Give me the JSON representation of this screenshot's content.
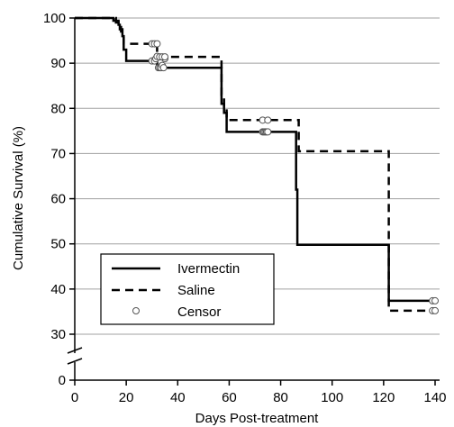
{
  "chart_data": {
    "type": "line",
    "title": "",
    "xlabel": "Days Post-treatment",
    "ylabel": "Cumulative Survival (%)",
    "xlim": [
      0,
      140
    ],
    "ylim": [
      30,
      100
    ],
    "y_axis_break": true,
    "x_ticks": [
      0,
      20,
      40,
      60,
      80,
      100,
      120,
      140
    ],
    "y_ticks": [
      0,
      30,
      40,
      50,
      60,
      70,
      80,
      90,
      100
    ],
    "grid": "horizontal",
    "legend_position": "bottom-left",
    "series": [
      {
        "name": "Ivermectin",
        "style": "solid",
        "steps": [
          [
            0,
            100
          ],
          [
            15,
            100
          ],
          [
            15,
            99.4
          ],
          [
            17,
            99.4
          ],
          [
            17,
            98.5
          ],
          [
            17.5,
            98.5
          ],
          [
            17.5,
            97.5
          ],
          [
            18.5,
            97.5
          ],
          [
            18.5,
            96
          ],
          [
            19,
            96
          ],
          [
            19,
            93
          ],
          [
            20,
            93
          ],
          [
            20,
            90.5
          ],
          [
            32,
            90.5
          ],
          [
            32,
            89
          ],
          [
            57,
            89
          ],
          [
            57,
            81
          ],
          [
            58,
            81
          ],
          [
            58,
            79
          ],
          [
            59,
            79
          ],
          [
            59,
            74.8
          ],
          [
            86,
            74.8
          ],
          [
            86,
            62
          ],
          [
            86.5,
            62
          ],
          [
            86.5,
            49.8
          ],
          [
            122,
            49.8
          ],
          [
            122,
            37.4
          ],
          [
            140,
            37.4
          ]
        ],
        "censor": [
          [
            30,
            90.5
          ],
          [
            31,
            90.5
          ],
          [
            31.5,
            91
          ],
          [
            32,
            91.5
          ],
          [
            32.5,
            89
          ],
          [
            33,
            89
          ],
          [
            33.5,
            89
          ],
          [
            34,
            89.5
          ],
          [
            34.5,
            89
          ],
          [
            35,
            91
          ],
          [
            73,
            74.8
          ],
          [
            73.5,
            74.8
          ],
          [
            74,
            74.8
          ],
          [
            74.5,
            74.8
          ],
          [
            75,
            74.8
          ],
          [
            139,
            37.4
          ],
          [
            140,
            37.4
          ]
        ]
      },
      {
        "name": "Saline",
        "style": "dashed",
        "steps": [
          [
            0,
            100
          ],
          [
            16,
            100
          ],
          [
            16,
            99
          ],
          [
            17,
            99
          ],
          [
            17,
            98
          ],
          [
            18,
            98
          ],
          [
            18,
            97
          ],
          [
            19,
            97
          ],
          [
            19,
            94.3
          ],
          [
            32,
            94.3
          ],
          [
            32,
            91.4
          ],
          [
            57,
            91.4
          ],
          [
            57,
            83
          ],
          [
            58,
            83
          ],
          [
            58,
            80
          ],
          [
            59,
            80
          ],
          [
            59,
            77.4
          ],
          [
            87,
            77.4
          ],
          [
            87,
            70.5
          ],
          [
            122,
            70.5
          ],
          [
            122,
            35.2
          ],
          [
            140,
            35.2
          ]
        ],
        "censor": [
          [
            30,
            94.3
          ],
          [
            31,
            94.3
          ],
          [
            32,
            94.3
          ],
          [
            33,
            91.4
          ],
          [
            34,
            91.4
          ],
          [
            35,
            91.4
          ],
          [
            73,
            77.4
          ],
          [
            75,
            77.4
          ],
          [
            139,
            35.2
          ],
          [
            140,
            35.2
          ]
        ]
      }
    ],
    "legend": [
      {
        "label": "Ivermectin",
        "marker": "solid-line"
      },
      {
        "label": "Saline",
        "marker": "dashed-line"
      },
      {
        "label": "Censor",
        "marker": "open-circle"
      }
    ]
  }
}
